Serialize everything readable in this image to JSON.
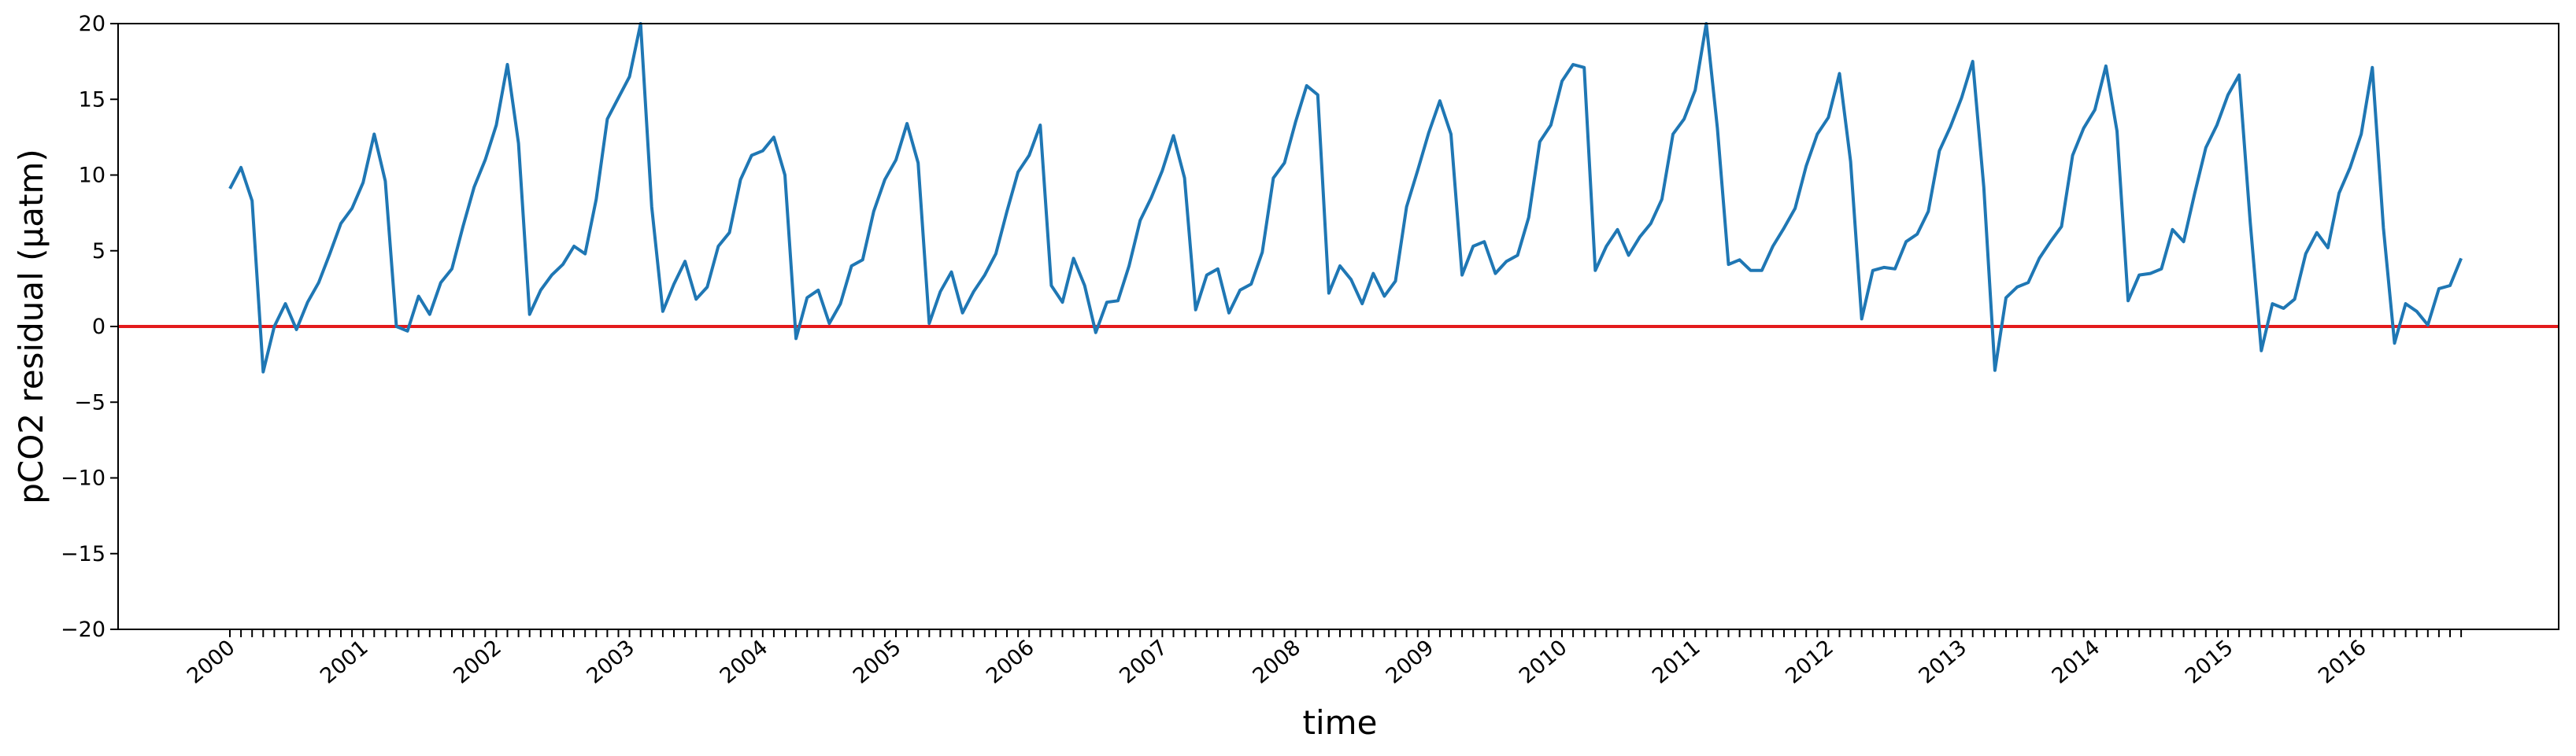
{
  "chart_data": {
    "type": "line",
    "xlabel": "time",
    "ylabel": "pCO2 residual (μatm)",
    "ylim": [
      -20,
      20
    ],
    "yticks": [
      -20,
      -15,
      -10,
      -5,
      0,
      5,
      10,
      15,
      20
    ],
    "ytick_labels": [
      "−20",
      "−15",
      "−10",
      "−5",
      "0",
      "5",
      "10",
      "15",
      "20"
    ],
    "x_start": "2000-01",
    "x_end_tick": "2016-10",
    "year_labels": [
      "2000",
      "2001",
      "2002",
      "2003",
      "2004",
      "2005",
      "2006",
      "2007",
      "2008",
      "2009",
      "2010",
      "2011",
      "2012",
      "2013",
      "2014",
      "2015",
      "2016"
    ],
    "grid": false,
    "reference_line": {
      "y": 0,
      "color": "#e31a1c"
    },
    "series": [
      {
        "color": "#1f77b4",
        "values": [
          9.1,
          10.5,
          8.3,
          -3.0,
          0.0,
          1.5,
          -0.2,
          1.6,
          2.9,
          4.8,
          6.8,
          7.8,
          9.5,
          12.7,
          9.6,
          0.0,
          -0.3,
          2.0,
          0.8,
          2.9,
          3.8,
          6.6,
          9.2,
          11.0,
          13.3,
          17.3,
          12.1,
          0.8,
          2.4,
          3.4,
          4.1,
          5.3,
          4.8,
          8.4,
          13.7,
          15.1,
          16.5,
          20.3,
          7.9,
          1.0,
          2.8,
          4.3,
          1.8,
          2.6,
          5.3,
          6.2,
          9.7,
          11.3,
          11.6,
          12.5,
          10.0,
          -0.8,
          1.9,
          2.4,
          0.2,
          1.5,
          4.0,
          4.4,
          7.6,
          9.7,
          11.0,
          13.4,
          10.8,
          0.2,
          2.3,
          3.6,
          0.9,
          2.3,
          3.4,
          4.8,
          7.6,
          10.2,
          11.3,
          13.3,
          2.7,
          1.6,
          4.5,
          2.7,
          -0.4,
          1.6,
          1.7,
          4.0,
          7.0,
          8.5,
          10.3,
          12.6,
          9.8,
          1.1,
          3.4,
          3.8,
          0.9,
          2.4,
          2.8,
          4.9,
          9.8,
          10.8,
          13.5,
          15.9,
          15.3,
          2.2,
          4.0,
          3.1,
          1.5,
          3.5,
          2.0,
          3.0,
          7.9,
          10.3,
          12.8,
          14.9,
          12.7,
          3.4,
          5.3,
          5.6,
          3.5,
          4.3,
          4.7,
          7.2,
          12.2,
          13.3,
          16.2,
          17.3,
          17.1,
          3.7,
          5.3,
          6.4,
          4.7,
          5.9,
          6.8,
          8.4,
          12.7,
          13.7,
          15.6,
          20.2,
          13.1,
          4.1,
          4.4,
          3.7,
          3.7,
          5.3,
          6.5,
          7.8,
          10.6,
          12.7,
          13.8,
          16.7,
          10.9,
          0.5,
          3.7,
          3.9,
          3.8,
          5.6,
          6.1,
          7.6,
          11.6,
          13.2,
          15.1,
          17.5,
          9.2,
          -2.9,
          1.9,
          2.6,
          2.9,
          4.5,
          5.6,
          6.6,
          11.3,
          13.1,
          14.3,
          17.2,
          12.9,
          1.7,
          3.4,
          3.5,
          3.8,
          6.4,
          5.6,
          8.8,
          11.8,
          13.3,
          15.3,
          16.6,
          6.9,
          -1.6,
          1.5,
          1.2,
          1.8,
          4.8,
          6.2,
          5.2,
          8.8,
          10.5,
          12.7,
          17.1,
          6.5,
          -1.1,
          1.5,
          1.0,
          0.1,
          2.5,
          2.7,
          4.5
        ]
      }
    ]
  }
}
